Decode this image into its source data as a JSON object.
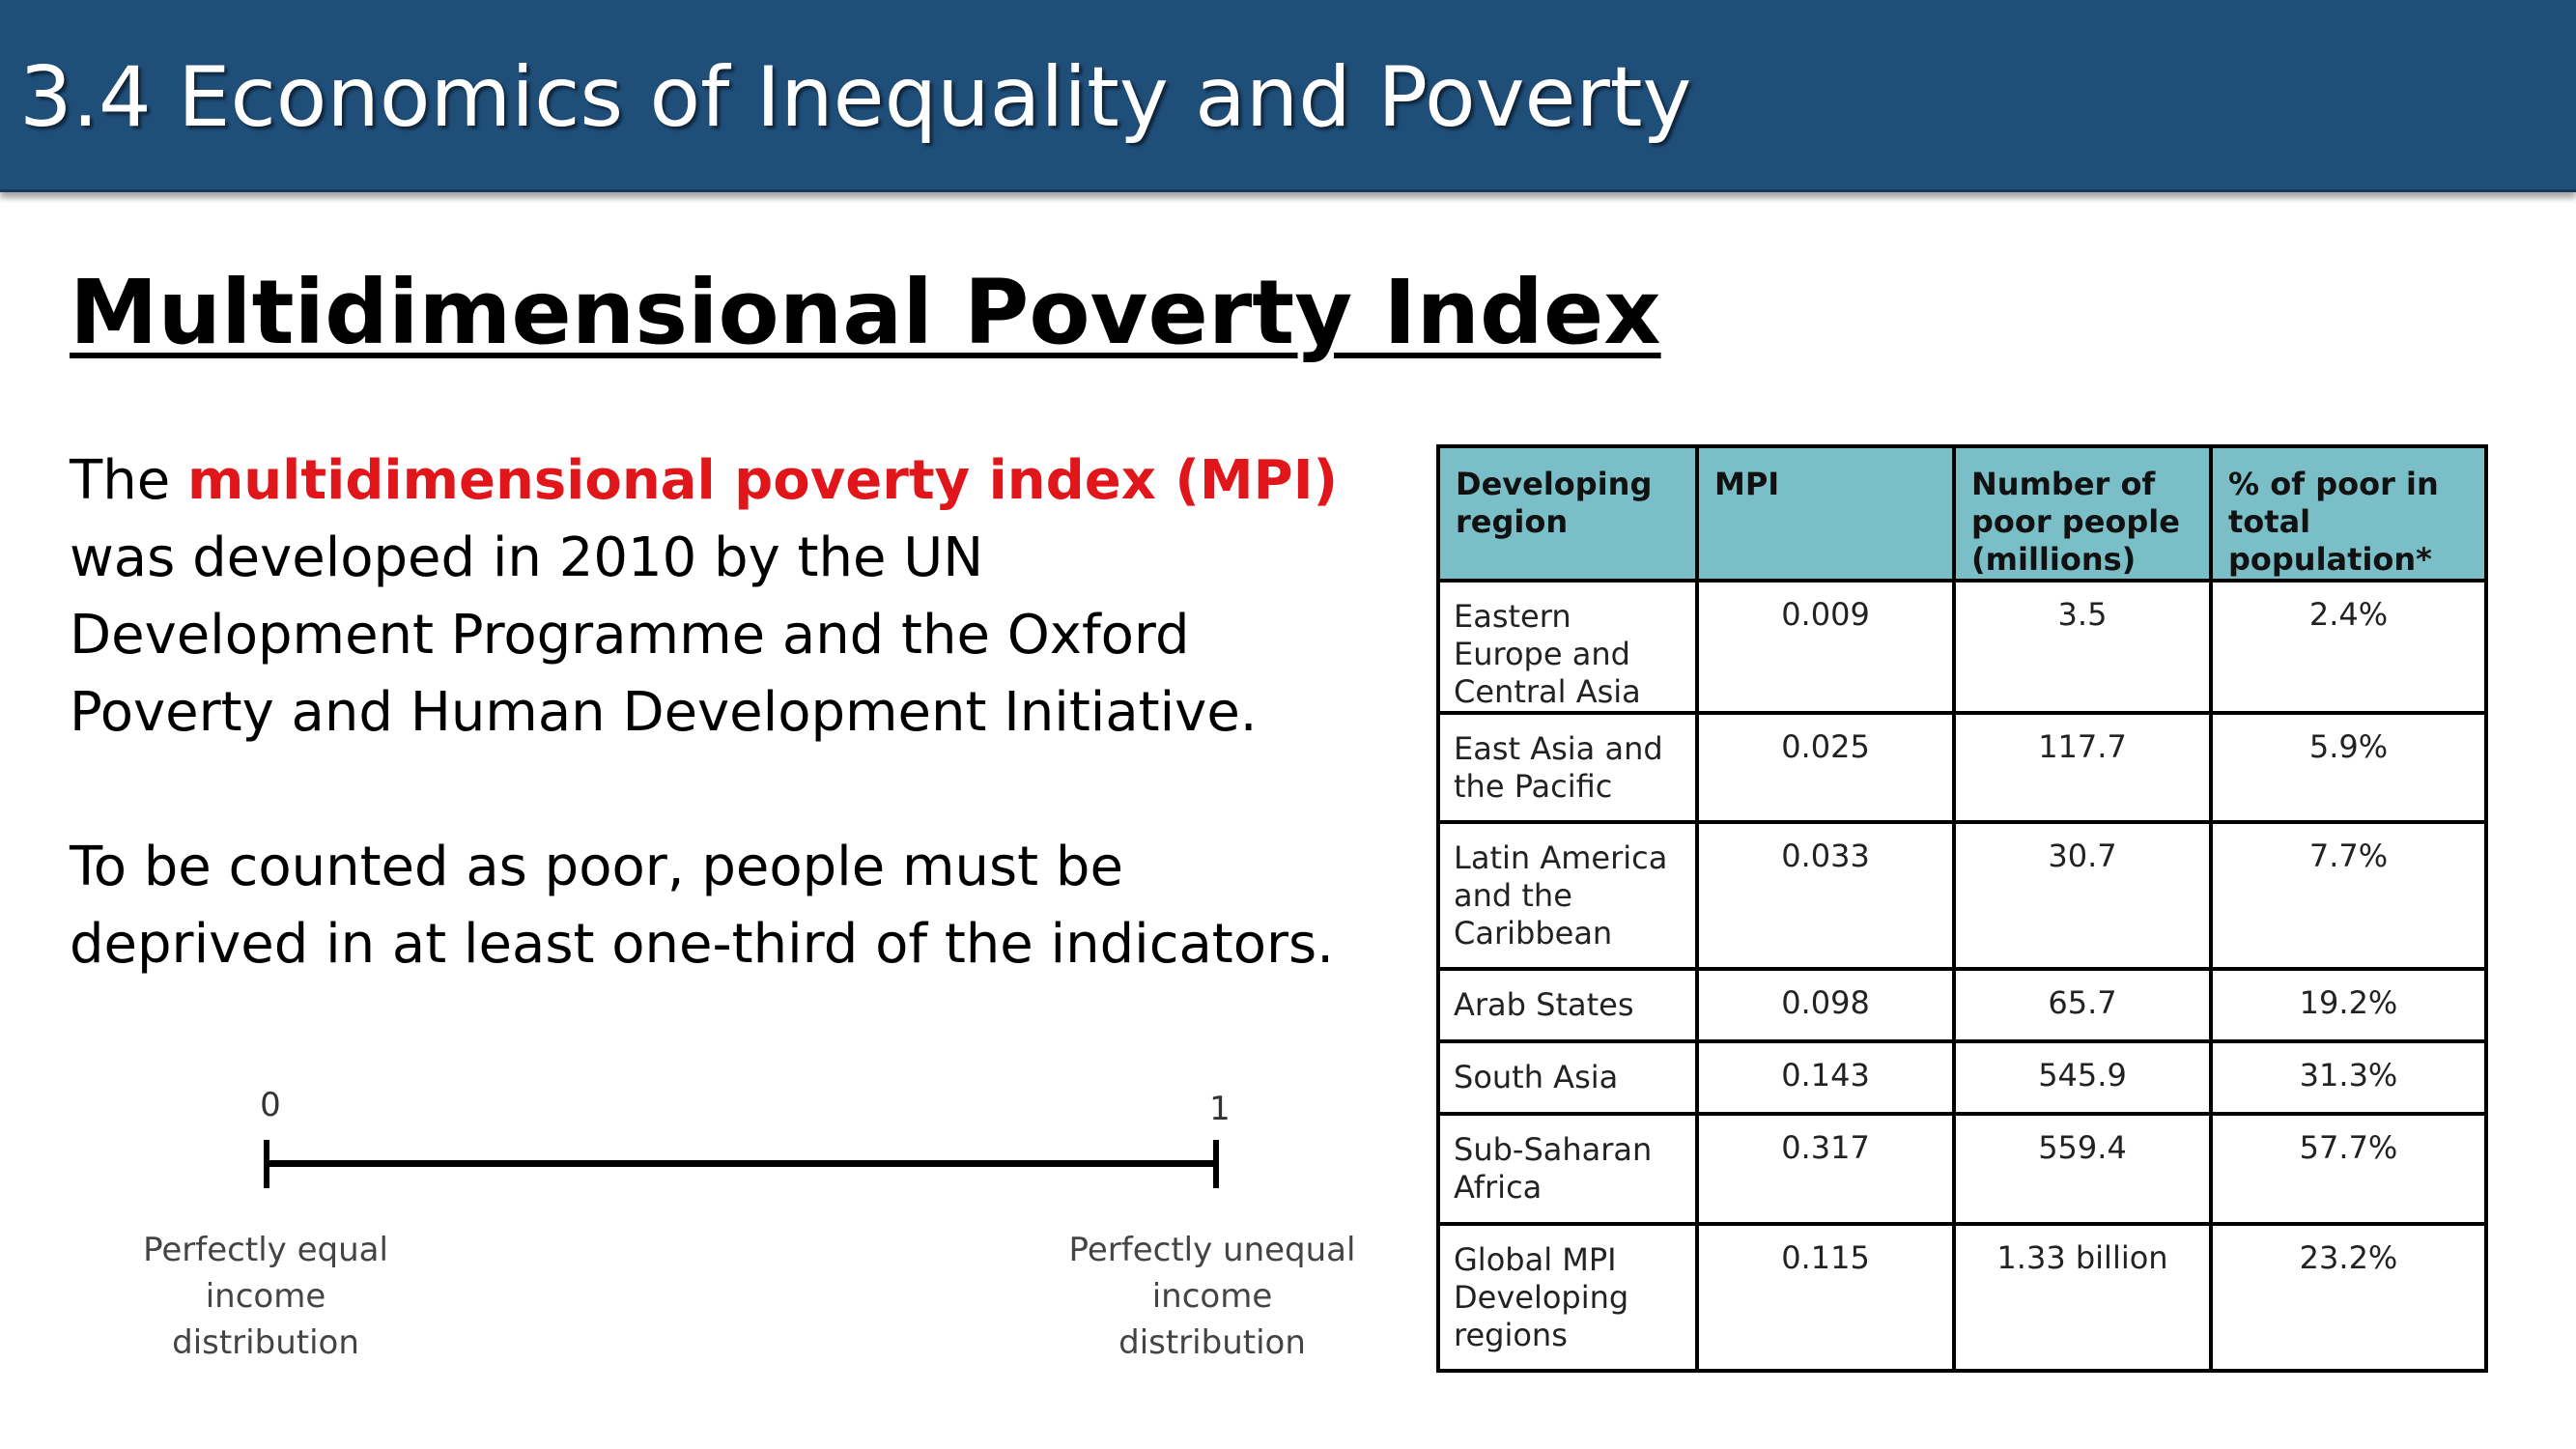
{
  "header": {
    "title": "3.4 Economics of Inequality and Poverty",
    "background": "#1f4e79"
  },
  "slide": {
    "heading": "Multidimensional Poverty Index",
    "paragraph1": {
      "lead": "The ",
      "term": "multidimensional poverty index (MPI)",
      "rest": " was developed in 2010 by the UN Development Programme and the Oxford Poverty and Human Development Initiative."
    },
    "paragraph2": "To be counted as poor, people must be deprived in at least one-third of the indicators.",
    "term_color": "#e0161b"
  },
  "scale": {
    "min_label": "0",
    "max_label": "1",
    "min_caption": "Perfectly equal income distribution",
    "max_caption": "Perfectly unequal income distribution"
  },
  "table": {
    "header_color": "#7abfc8",
    "columns": [
      "Developing region",
      "MPI",
      "Number of poor people (millions)",
      "% of poor in total population*"
    ],
    "rows": [
      [
        "Eastern Europe and Central Asia",
        "0.009",
        "3.5",
        "2.4%"
      ],
      [
        "East Asia and the Pacific",
        "0.025",
        "117.7",
        "5.9%"
      ],
      [
        "Latin America and the Caribbean",
        "0.033",
        "30.7",
        "7.7%"
      ],
      [
        "Arab States",
        "0.098",
        "65.7",
        "19.2%"
      ],
      [
        "South Asia",
        "0.143",
        "545.9",
        "31.3%"
      ],
      [
        "Sub-Saharan Africa",
        "0.317",
        "559.4",
        "57.7%"
      ],
      [
        "Global MPI Developing regions",
        "0.115",
        "1.33 billion",
        "23.2%"
      ]
    ]
  }
}
